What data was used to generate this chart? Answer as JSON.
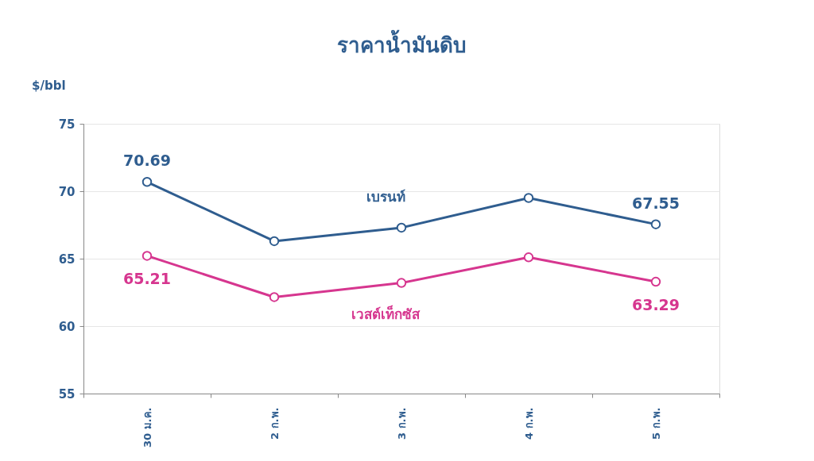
{
  "chart_data": {
    "type": "line",
    "title": "ราคาน้ำมันดิบ",
    "ylabel": "$/bbl",
    "categories": [
      "30 ม.ค.",
      "2 ก.พ.",
      "3 ก.พ.",
      "4 ก.พ.",
      "5 ก.พ."
    ],
    "series": [
      {
        "name": "เบรนท์",
        "color": "#2f5d8f",
        "values": [
          70.69,
          66.3,
          67.3,
          69.5,
          67.55
        ],
        "value_labels": [
          "70.69",
          null,
          null,
          null,
          "67.55"
        ]
      },
      {
        "name": "เวสต์เท็กซัส",
        "color": "#d6368f",
        "values": [
          65.21,
          62.15,
          63.2,
          65.1,
          63.29
        ],
        "value_labels": [
          "65.21",
          null,
          null,
          null,
          "63.29"
        ]
      }
    ],
    "ylim": [
      55,
      75
    ],
    "yticks": [
      55,
      60,
      65,
      70,
      75
    ],
    "grid": "y",
    "marker": "circle",
    "line_style": "solid"
  }
}
